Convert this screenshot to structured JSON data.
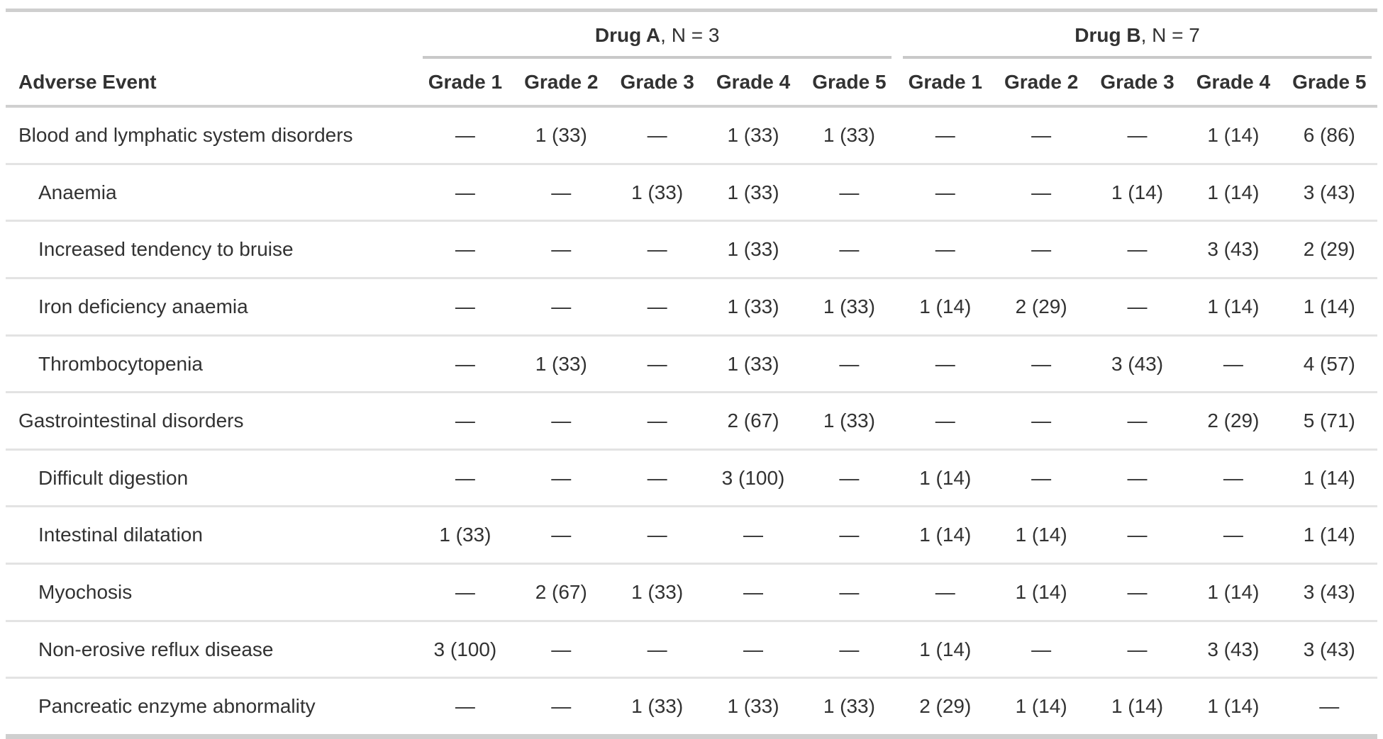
{
  "colors": {
    "text": "#323232",
    "strong_rule": "#cfcfcf",
    "header_rule": "#d0d0d0",
    "spanner_rule": "#c9c9c9",
    "row_rule": "#e3e3e3",
    "background": "#ffffff"
  },
  "chart_data": {
    "type": "table",
    "row_header": "Adverse Event",
    "spanners": [
      {
        "label_bold": "Drug A",
        "label_rest": ", N = 3"
      },
      {
        "label_bold": "Drug B",
        "label_rest": ", N = 7"
      }
    ],
    "grade_columns": [
      "Grade 1",
      "Grade 2",
      "Grade 3",
      "Grade 4",
      "Grade 5"
    ],
    "rows": [
      {
        "label": "Blood and lymphatic system disorders",
        "indent": false,
        "drug_a": [
          "—",
          "1 (33)",
          "—",
          "1 (33)",
          "1 (33)"
        ],
        "drug_b": [
          "—",
          "—",
          "—",
          "1 (14)",
          "6 (86)"
        ]
      },
      {
        "label": "Anaemia",
        "indent": true,
        "drug_a": [
          "—",
          "—",
          "1 (33)",
          "1 (33)",
          "—"
        ],
        "drug_b": [
          "—",
          "—",
          "1 (14)",
          "1 (14)",
          "3 (43)"
        ]
      },
      {
        "label": "Increased tendency to bruise",
        "indent": true,
        "drug_a": [
          "—",
          "—",
          "—",
          "1 (33)",
          "—"
        ],
        "drug_b": [
          "—",
          "—",
          "—",
          "3 (43)",
          "2 (29)"
        ]
      },
      {
        "label": "Iron deficiency anaemia",
        "indent": true,
        "drug_a": [
          "—",
          "—",
          "—",
          "1 (33)",
          "1 (33)"
        ],
        "drug_b": [
          "1 (14)",
          "2 (29)",
          "—",
          "1 (14)",
          "1 (14)"
        ]
      },
      {
        "label": "Thrombocytopenia",
        "indent": true,
        "drug_a": [
          "—",
          "1 (33)",
          "—",
          "1 (33)",
          "—"
        ],
        "drug_b": [
          "—",
          "—",
          "3 (43)",
          "—",
          "4 (57)"
        ]
      },
      {
        "label": "Gastrointestinal disorders",
        "indent": false,
        "drug_a": [
          "—",
          "—",
          "—",
          "2 (67)",
          "1 (33)"
        ],
        "drug_b": [
          "—",
          "—",
          "—",
          "2 (29)",
          "5 (71)"
        ]
      },
      {
        "label": "Difficult digestion",
        "indent": true,
        "drug_a": [
          "—",
          "—",
          "—",
          "3 (100)",
          "—"
        ],
        "drug_b": [
          "1 (14)",
          "—",
          "—",
          "—",
          "1 (14)"
        ]
      },
      {
        "label": "Intestinal dilatation",
        "indent": true,
        "drug_a": [
          "1 (33)",
          "—",
          "—",
          "—",
          "—"
        ],
        "drug_b": [
          "1 (14)",
          "1 (14)",
          "—",
          "—",
          "1 (14)"
        ]
      },
      {
        "label": "Myochosis",
        "indent": true,
        "drug_a": [
          "—",
          "2 (67)",
          "1 (33)",
          "—",
          "—"
        ],
        "drug_b": [
          "—",
          "1 (14)",
          "—",
          "1 (14)",
          "3 (43)"
        ]
      },
      {
        "label": "Non-erosive reflux disease",
        "indent": true,
        "drug_a": [
          "3 (100)",
          "—",
          "—",
          "—",
          "—"
        ],
        "drug_b": [
          "1 (14)",
          "—",
          "—",
          "3 (43)",
          "3 (43)"
        ]
      },
      {
        "label": "Pancreatic enzyme abnormality",
        "indent": true,
        "drug_a": [
          "—",
          "—",
          "1 (33)",
          "1 (33)",
          "1 (33)"
        ],
        "drug_b": [
          "2 (29)",
          "1 (14)",
          "1 (14)",
          "1 (14)",
          "—"
        ]
      }
    ]
  }
}
